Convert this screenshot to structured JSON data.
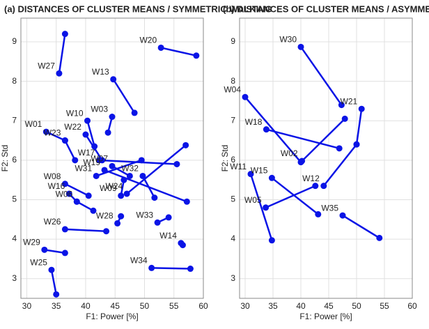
{
  "chart_data": [
    {
      "type": "line",
      "title": "(a) DISTANCES OF CLUSTER MEANS / SYMMETRIC WALKING",
      "xlabel": "F1: Power [%]",
      "ylabel": "F2: Std",
      "xlim": [
        29,
        60
      ],
      "ylim": [
        2.5,
        9.6
      ],
      "xticks": [
        30,
        35,
        40,
        45,
        50,
        55,
        60
      ],
      "yticks": [
        3,
        4,
        5,
        6,
        7,
        8,
        9
      ],
      "grid": true,
      "color": "#0a14e6",
      "series": [
        {
          "name": "W27",
          "x": [
            35.5,
            36.5
          ],
          "values": [
            8.2,
            9.2
          ]
        },
        {
          "name": "W20",
          "x": [
            52.8,
            58.8
          ],
          "values": [
            8.85,
            8.65
          ]
        },
        {
          "name": "W13",
          "x": [
            44.7,
            48.3
          ],
          "values": [
            8.05,
            7.2
          ]
        },
        {
          "name": "W03",
          "x": [
            44.5,
            43.8
          ],
          "values": [
            7.1,
            6.7
          ]
        },
        {
          "name": "W10",
          "x": [
            40.3,
            41.5
          ],
          "values": [
            7.0,
            6.35
          ]
        },
        {
          "name": "W22",
          "x": [
            40.0,
            42.8
          ],
          "values": [
            6.65,
            6.0
          ]
        },
        {
          "name": "W01",
          "x": [
            33.3,
            36.5
          ],
          "values": [
            6.72,
            6.5
          ]
        },
        {
          "name": "W23",
          "x": [
            36.5,
            38.2
          ],
          "values": [
            6.5,
            6.0
          ]
        },
        {
          "name": "W17",
          "x": [
            42.3,
            55.5
          ],
          "values": [
            6.0,
            5.9
          ]
        },
        {
          "name": "W31",
          "x": [
            41.8,
            49.5
          ],
          "values": [
            5.6,
            6.0
          ]
        },
        {
          "name": "W07",
          "x": [
            44.5,
            47.5
          ],
          "values": [
            5.85,
            5.6
          ]
        },
        {
          "name": "W19",
          "x": [
            43.2,
            57.2
          ],
          "values": [
            5.75,
            4.95
          ]
        },
        {
          "name": "W32",
          "x": [
            49.7,
            51.7
          ],
          "values": [
            5.6,
            5.05
          ]
        },
        {
          "name": "W09",
          "x": [
            46.0,
            46.5
          ],
          "values": [
            5.1,
            5.5
          ]
        },
        {
          "name": "W24",
          "x": [
            47.0,
            57.0
          ],
          "values": [
            5.15,
            6.38
          ]
        },
        {
          "name": "W08",
          "x": [
            36.5,
            40.5
          ],
          "values": [
            5.4,
            5.1
          ]
        },
        {
          "name": "W16",
          "x": [
            37.2,
            38.5
          ],
          "values": [
            5.15,
            4.95
          ]
        },
        {
          "name": "W06",
          "x": [
            38.5,
            41.3
          ],
          "values": [
            4.95,
            4.72
          ]
        },
        {
          "name": "W26",
          "x": [
            36.5,
            43.5
          ],
          "values": [
            4.25,
            4.2
          ]
        },
        {
          "name": "W28",
          "x": [
            45.4,
            46.0
          ],
          "values": [
            4.4,
            4.58
          ]
        },
        {
          "name": "W33",
          "x": [
            52.2,
            54.1
          ],
          "values": [
            4.42,
            4.55
          ]
        },
        {
          "name": "W14",
          "x": [
            56.2,
            56.5
          ],
          "values": [
            3.9,
            3.85
          ]
        },
        {
          "name": "W29",
          "x": [
            33.0,
            36.5
          ],
          "values": [
            3.73,
            3.65
          ]
        },
        {
          "name": "W25",
          "x": [
            34.2,
            35.0
          ],
          "values": [
            3.22,
            2.6
          ]
        },
        {
          "name": "W34",
          "x": [
            51.2,
            57.8
          ],
          "values": [
            3.27,
            3.25
          ]
        }
      ]
    },
    {
      "type": "line",
      "title": "(b) DISTANCES OF CLUSTER MEANS / ASYMMETRIC WALKING",
      "xlabel": "F1: Power [%]",
      "ylabel": "F2: Std",
      "xlim": [
        29,
        60
      ],
      "ylim": [
        2.5,
        9.6
      ],
      "xticks": [
        30,
        35,
        40,
        45,
        50,
        55,
        60
      ],
      "yticks": [
        3,
        4,
        5,
        6,
        7,
        8,
        9
      ],
      "grid": true,
      "color": "#0a14e6",
      "series": [
        {
          "name": "W30",
          "x": [
            40.0,
            47.3
          ],
          "values": [
            8.87,
            7.4
          ]
        },
        {
          "name": "W04",
          "x": [
            30.0,
            40.0
          ],
          "values": [
            7.6,
            5.95
          ]
        },
        {
          "name": "W18",
          "x": [
            33.8,
            46.9
          ],
          "values": [
            6.78,
            6.3
          ]
        },
        {
          "name": "W21",
          "x": [
            50.9,
            50.0
          ],
          "values": [
            7.3,
            6.4
          ]
        },
        {
          "name": "W02",
          "x": [
            40.2,
            47.9
          ],
          "values": [
            5.98,
            7.05
          ]
        },
        {
          "name": "W12",
          "x": [
            44.1,
            50.0
          ],
          "values": [
            5.35,
            6.4
          ]
        },
        {
          "name": "W11",
          "x": [
            31.0,
            34.8
          ],
          "values": [
            5.65,
            3.97
          ]
        },
        {
          "name": "W05",
          "x": [
            33.7,
            42.6
          ],
          "values": [
            4.8,
            5.35
          ]
        },
        {
          "name": "W15",
          "x": [
            34.8,
            43.1
          ],
          "values": [
            5.55,
            4.63
          ]
        },
        {
          "name": "W35",
          "x": [
            47.5,
            54.1
          ],
          "values": [
            4.6,
            4.03
          ]
        }
      ]
    }
  ]
}
